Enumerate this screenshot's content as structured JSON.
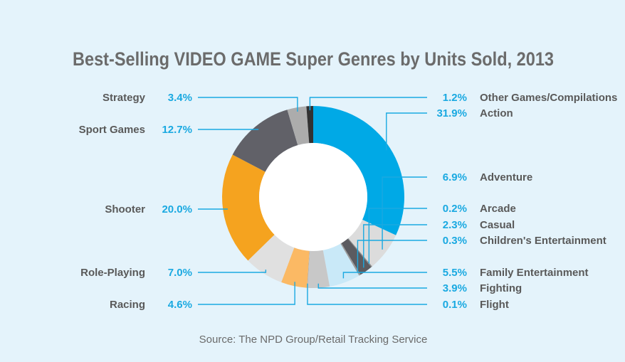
{
  "chart_data": {
    "type": "pie",
    "variant": "donut",
    "title": "Best-Selling VIDEO GAME Super Genres by Units Sold, 2013",
    "source": "Source: The NPD Group/Retail Tracking Service",
    "unit": "%",
    "slices": [
      {
        "name": "Action",
        "value": 31.9,
        "label": "31.9%",
        "color": "#00a9e6"
      },
      {
        "name": "Adventure",
        "value": 6.9,
        "label": "6.9%",
        "color": "#dcdcdc"
      },
      {
        "name": "Arcade",
        "value": 0.2,
        "label": "0.2%",
        "color": "#8a8a8a"
      },
      {
        "name": "Casual",
        "value": 2.3,
        "label": "2.3%",
        "color": "#5b5b60"
      },
      {
        "name": "Children's Entertainment",
        "value": 0.3,
        "label": "0.3%",
        "color": "#9a9a9a"
      },
      {
        "name": "Family Entertainment",
        "value": 5.5,
        "label": "5.5%",
        "color": "#c9e9f8"
      },
      {
        "name": "Fighting",
        "value": 3.9,
        "label": "3.9%",
        "color": "#c8c8c8"
      },
      {
        "name": "Flight",
        "value": 0.1,
        "label": "0.1%",
        "color": "#aaaaaa"
      },
      {
        "name": "Racing",
        "value": 4.6,
        "label": "4.6%",
        "color": "#fbb964"
      },
      {
        "name": "Role-Playing",
        "value": 7.0,
        "label": "7.0%",
        "color": "#e0e0e0"
      },
      {
        "name": "Shooter",
        "value": 20.0,
        "label": "20.0%",
        "color": "#f5a31f"
      },
      {
        "name": "Sport Games",
        "value": 12.7,
        "label": "12.7%",
        "color": "#616168"
      },
      {
        "name": "Strategy",
        "value": 3.4,
        "label": "3.4%",
        "color": "#acacac"
      },
      {
        "name": "Other Games/Compilations",
        "value": 1.2,
        "label": "1.2%",
        "color": "#323232"
      }
    ]
  }
}
